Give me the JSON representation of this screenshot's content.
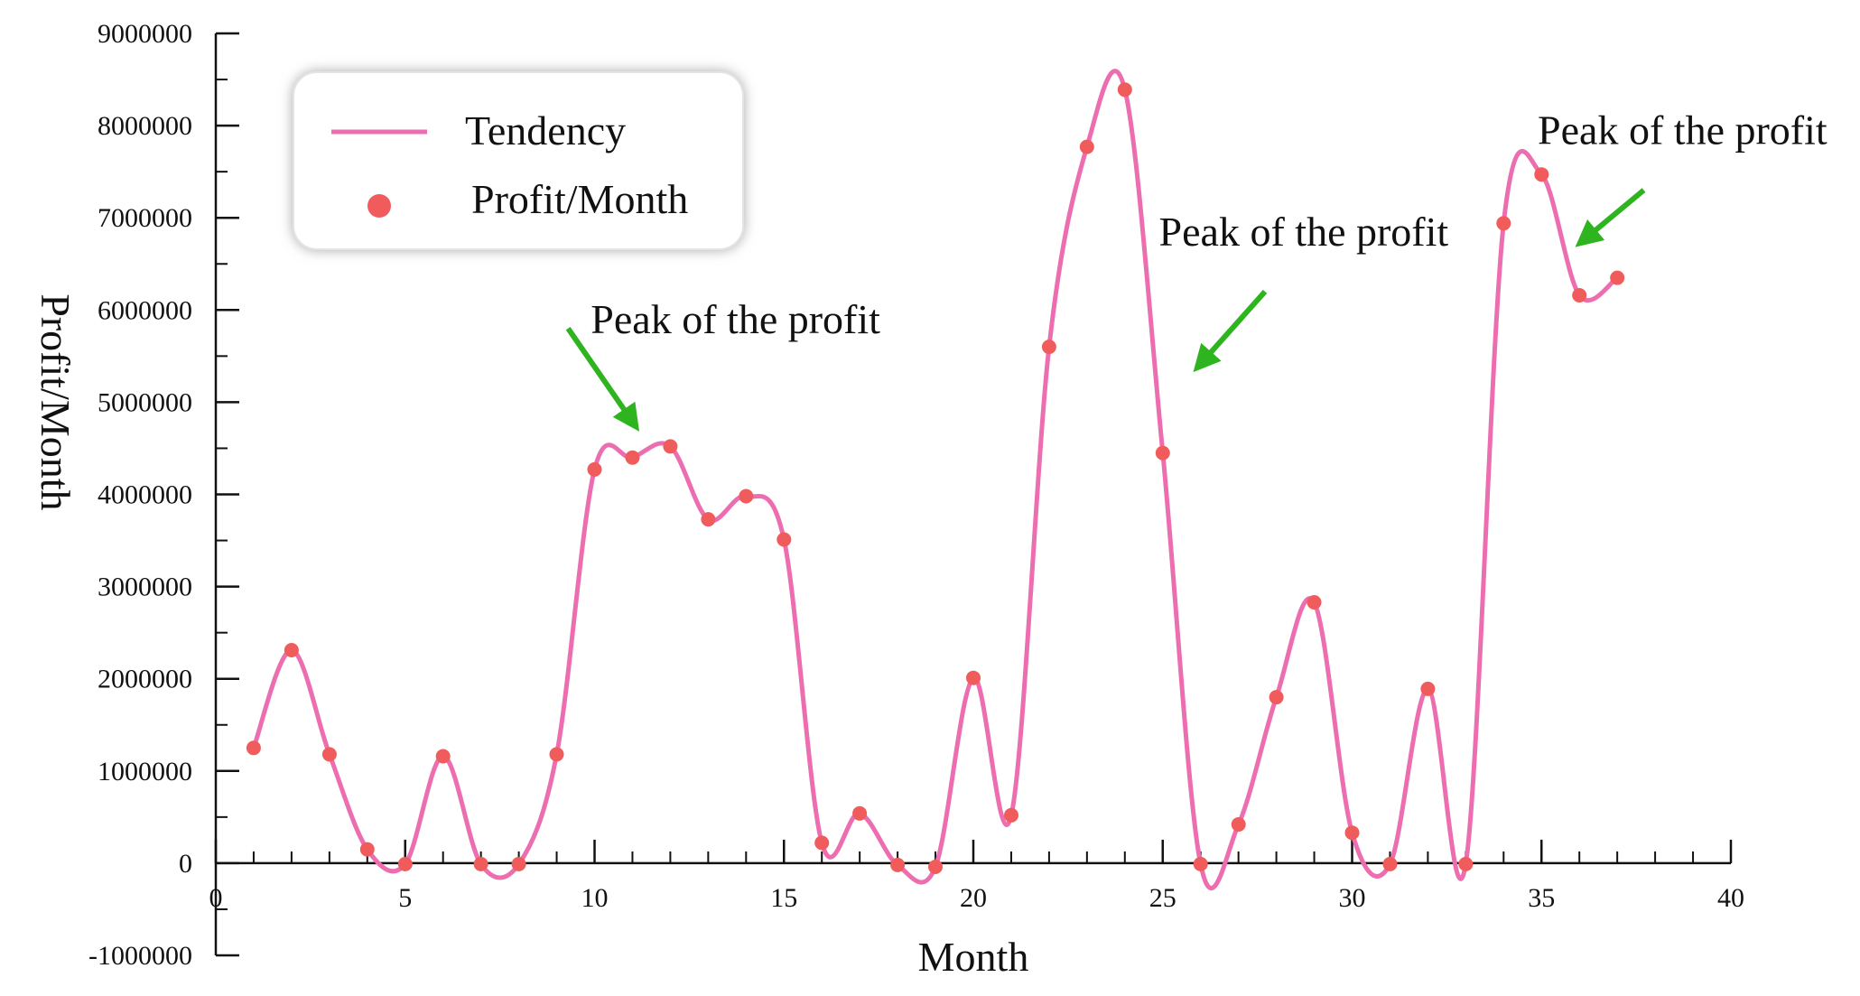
{
  "chart_data": {
    "type": "line",
    "xlabel": "Month",
    "ylabel": "Profit/Month",
    "xlim": [
      0,
      40
    ],
    "ylim": [
      -1000000,
      9000000
    ],
    "xticks": [
      0,
      5,
      10,
      15,
      20,
      25,
      30,
      35,
      40
    ],
    "yticks": [
      -1000000,
      0,
      1000000,
      2000000,
      3000000,
      4000000,
      5000000,
      6000000,
      7000000,
      8000000,
      9000000
    ],
    "grid": false,
    "legend": {
      "placement": "top-left",
      "entries": [
        {
          "label": "Tendency",
          "marker": "line",
          "color": "#ec6eb0"
        },
        {
          "label": "Profit/Month",
          "marker": "dot",
          "color": "#f05c5c"
        }
      ]
    },
    "series": [
      {
        "name": "Profit/Month",
        "color": "#f05c5c",
        "line_color": "#ec6eb0",
        "x": [
          1,
          2,
          3,
          4,
          5,
          6,
          7,
          8,
          9,
          10,
          11,
          12,
          13,
          14,
          15,
          16,
          17,
          18,
          19,
          20,
          21,
          22,
          23,
          24,
          25,
          26,
          27,
          28,
          29,
          30,
          31,
          32,
          33,
          34,
          35,
          36,
          37
        ],
        "y": [
          1250000,
          2310000,
          1180000,
          150000,
          -10000,
          1160000,
          -10000,
          -10000,
          1180000,
          4270000,
          4400000,
          4520000,
          3730000,
          3980000,
          3510000,
          220000,
          540000,
          -20000,
          -40000,
          2010000,
          520000,
          5600000,
          7770000,
          8390000,
          4450000,
          -10000,
          420000,
          1800000,
          2830000,
          330000,
          -10000,
          1890000,
          -10000,
          6940000,
          7470000,
          6160000,
          6350000
        ]
      }
    ],
    "annotations": [
      {
        "text": "Peak of the profit",
        "arrow_to": [
          11.1,
          4730000
        ],
        "arrow_from": [
          9.3,
          5800000
        ],
        "text_at": [
          9.9,
          5750000
        ]
      },
      {
        "text": "Peak of the profit",
        "arrow_to": [
          25.9,
          5370000
        ],
        "arrow_from": [
          27.7,
          6200000
        ],
        "text_at": [
          24.9,
          6700000
        ]
      },
      {
        "text": "Peak of the profit",
        "arrow_to": [
          36.0,
          6720000
        ],
        "arrow_from": [
          37.7,
          7300000
        ],
        "text_at": [
          34.9,
          7800000
        ]
      }
    ]
  }
}
